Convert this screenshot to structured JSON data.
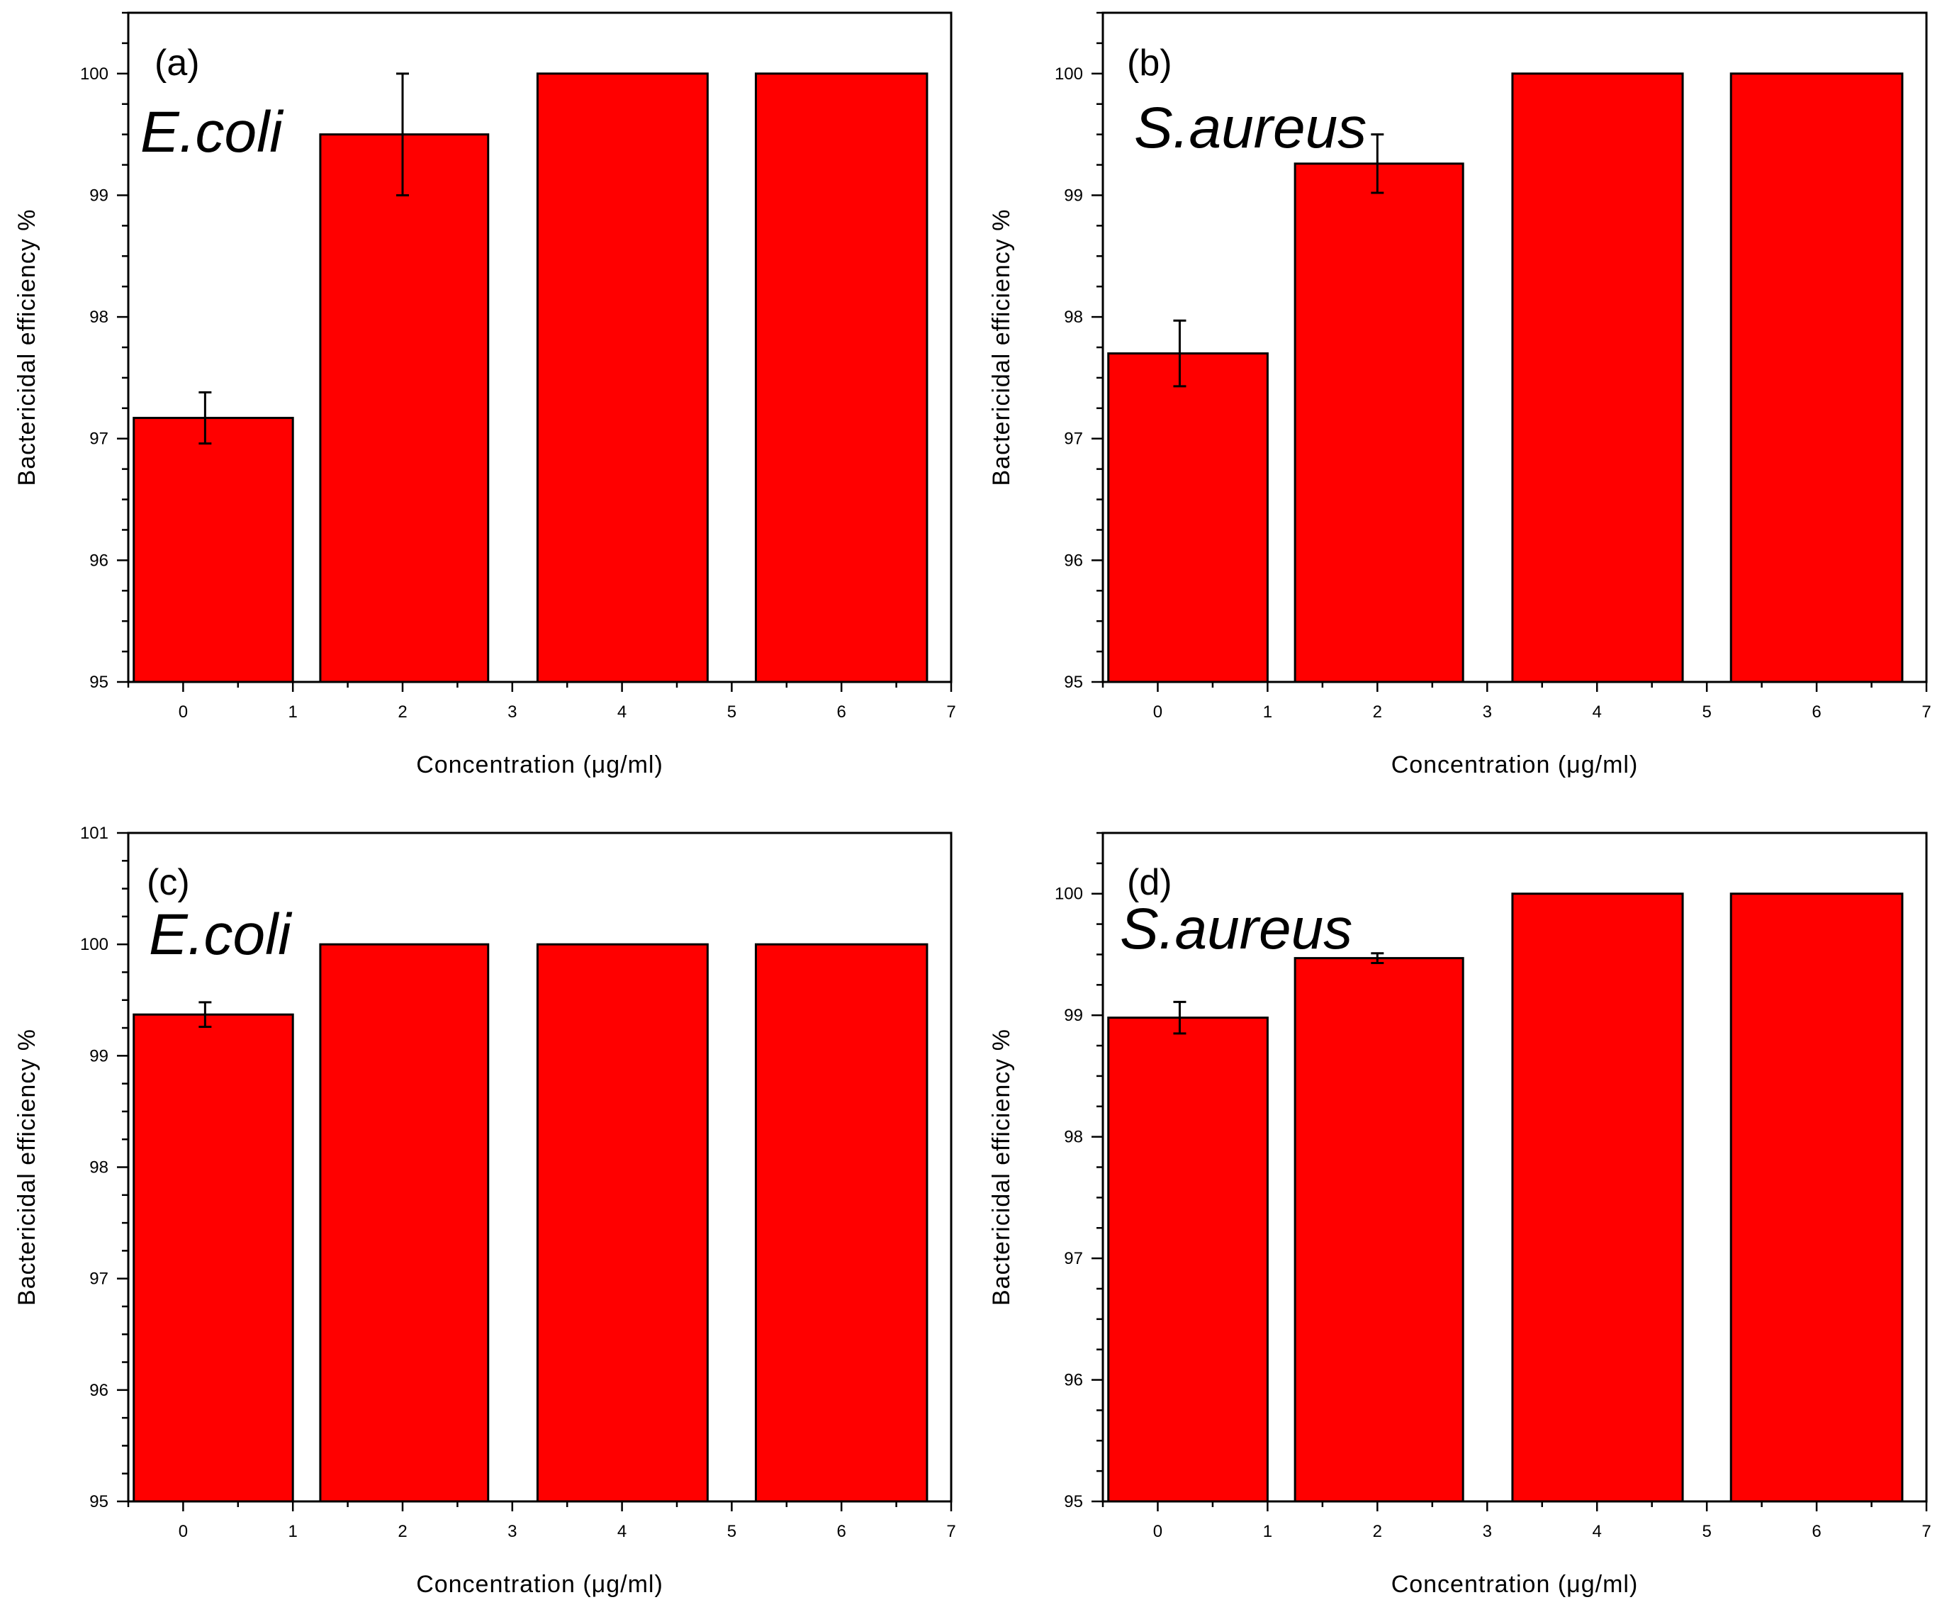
{
  "figure": {
    "bar_color": "#ff0000",
    "bar_edge_color": "#000000"
  },
  "chart_data": [
    {
      "type": "bar",
      "panel": "(a)",
      "organism": "E.coli",
      "xlabel": "Concentration (μg/ml)",
      "ylabel": "Bactericidal efficiency %",
      "xlim": [
        -0.5,
        7
      ],
      "ylim": [
        95,
        100.5
      ],
      "xticks": [
        0,
        1,
        2,
        3,
        4,
        5,
        6,
        7
      ],
      "yticks": [
        95,
        96,
        97,
        98,
        99,
        100
      ],
      "bars": [
        {
          "x0": -0.45,
          "x1": 1.0,
          "value": 97.17,
          "error": 0.21,
          "err_x": 0.2
        },
        {
          "x0": 1.25,
          "x1": 2.78,
          "value": 99.5,
          "error": 0.5,
          "err_x": 2.0
        },
        {
          "x0": 3.23,
          "x1": 4.78,
          "value": 100,
          "error": 0,
          "err_x": 4.0
        },
        {
          "x0": 5.22,
          "x1": 6.78,
          "value": 100,
          "error": 0,
          "err_x": 6.0
        }
      ]
    },
    {
      "type": "bar",
      "panel": "(b)",
      "organism": "S.aureus",
      "xlabel": "Concentration (μg/ml)",
      "ylabel": "Bactericidal efficiency %",
      "xlim": [
        -0.5,
        7
      ],
      "ylim": [
        95,
        100.5
      ],
      "xticks": [
        0,
        1,
        2,
        3,
        4,
        5,
        6,
        7
      ],
      "yticks": [
        95,
        96,
        97,
        98,
        99,
        100
      ],
      "bars": [
        {
          "x0": -0.45,
          "x1": 1.0,
          "value": 97.7,
          "error": 0.27,
          "err_x": 0.2
        },
        {
          "x0": 1.25,
          "x1": 2.78,
          "value": 99.26,
          "error": 0.24,
          "err_x": 2.0
        },
        {
          "x0": 3.23,
          "x1": 4.78,
          "value": 100,
          "error": 0,
          "err_x": 4.0
        },
        {
          "x0": 5.22,
          "x1": 6.78,
          "value": 100,
          "error": 0,
          "err_x": 6.0
        }
      ]
    },
    {
      "type": "bar",
      "panel": "(c)",
      "organism": "E.coli",
      "xlabel": "Concentration (μg/ml)",
      "ylabel": "Bactericidal efficiency %",
      "xlim": [
        -0.5,
        7
      ],
      "ylim": [
        95,
        101
      ],
      "xticks": [
        0,
        1,
        2,
        3,
        4,
        5,
        6,
        7
      ],
      "yticks": [
        95,
        96,
        97,
        98,
        99,
        100,
        101
      ],
      "bars": [
        {
          "x0": -0.45,
          "x1": 1.0,
          "value": 99.37,
          "error": 0.11,
          "err_x": 0.2
        },
        {
          "x0": 1.25,
          "x1": 2.78,
          "value": 100,
          "error": 0,
          "err_x": 2.0
        },
        {
          "x0": 3.23,
          "x1": 4.78,
          "value": 100,
          "error": 0,
          "err_x": 4.0
        },
        {
          "x0": 5.22,
          "x1": 6.78,
          "value": 100,
          "error": 0,
          "err_x": 6.0
        }
      ]
    },
    {
      "type": "bar",
      "panel": "(d)",
      "organism": "S.aureus",
      "xlabel": "Concentration (μg/ml)",
      "ylabel": "Bactericidal efficiency %",
      "xlim": [
        -0.5,
        7
      ],
      "ylim": [
        95,
        100.5
      ],
      "xticks": [
        0,
        1,
        2,
        3,
        4,
        5,
        6,
        7
      ],
      "yticks": [
        95,
        96,
        97,
        98,
        99,
        100
      ],
      "bars": [
        {
          "x0": -0.45,
          "x1": 1.0,
          "value": 98.98,
          "error": 0.13,
          "err_x": 0.2
        },
        {
          "x0": 1.25,
          "x1": 2.78,
          "value": 99.47,
          "error": 0.04,
          "err_x": 2.0
        },
        {
          "x0": 3.23,
          "x1": 4.78,
          "value": 100,
          "error": 0,
          "err_x": 4.0
        },
        {
          "x0": 5.22,
          "x1": 6.78,
          "value": 100,
          "error": 0,
          "err_x": 6.0
        }
      ]
    }
  ]
}
